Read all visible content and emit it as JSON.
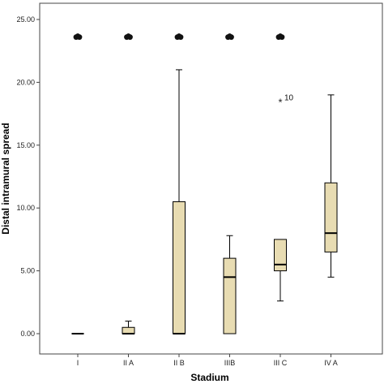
{
  "chart_data": {
    "type": "boxplot",
    "xlabel": "Stadium",
    "ylabel": "Distal intramural spread",
    "ylim": [
      -1.5,
      25.5
    ],
    "yticks": [
      "0.00",
      "5.00",
      "10.00",
      "15.00",
      "20.00",
      "25.00"
    ],
    "categories": [
      "I",
      "II A",
      "II B",
      "IIIB",
      "III C",
      "IV A"
    ],
    "box_fill": "#e8dcb2",
    "boxes": [
      {
        "category": "I",
        "min": 0,
        "q1": 0,
        "median": 0,
        "q3": 0,
        "max": 0
      },
      {
        "category": "II A",
        "min": 0,
        "q1": 0,
        "median": 0,
        "q3": 0.5,
        "max": 1.0
      },
      {
        "category": "II B",
        "min": 0,
        "q1": 0,
        "median": 0,
        "q3": 10.5,
        "max": 21.0
      },
      {
        "category": "IIIB",
        "min": 0,
        "q1": 0,
        "median": 4.5,
        "q3": 6.0,
        "max": 7.8
      },
      {
        "category": "III C",
        "min": 2.6,
        "q1": 5.0,
        "median": 5.5,
        "q3": 7.5,
        "max": 7.5
      },
      {
        "category": "IV A",
        "min": 4.5,
        "q1": 6.5,
        "median": 8.0,
        "q3": 12.0,
        "max": 19.0
      }
    ],
    "outliers": [
      {
        "category": "III C",
        "value": 18.5,
        "symbol": "*",
        "label": "10"
      }
    ],
    "top_markers": [
      {
        "category": "I",
        "value": 23.6
      },
      {
        "category": "II A",
        "value": 23.6
      },
      {
        "category": "II B",
        "value": 23.6
      },
      {
        "category": "IIIB",
        "value": 23.6
      },
      {
        "category": "III C",
        "value": 23.6
      }
    ]
  }
}
